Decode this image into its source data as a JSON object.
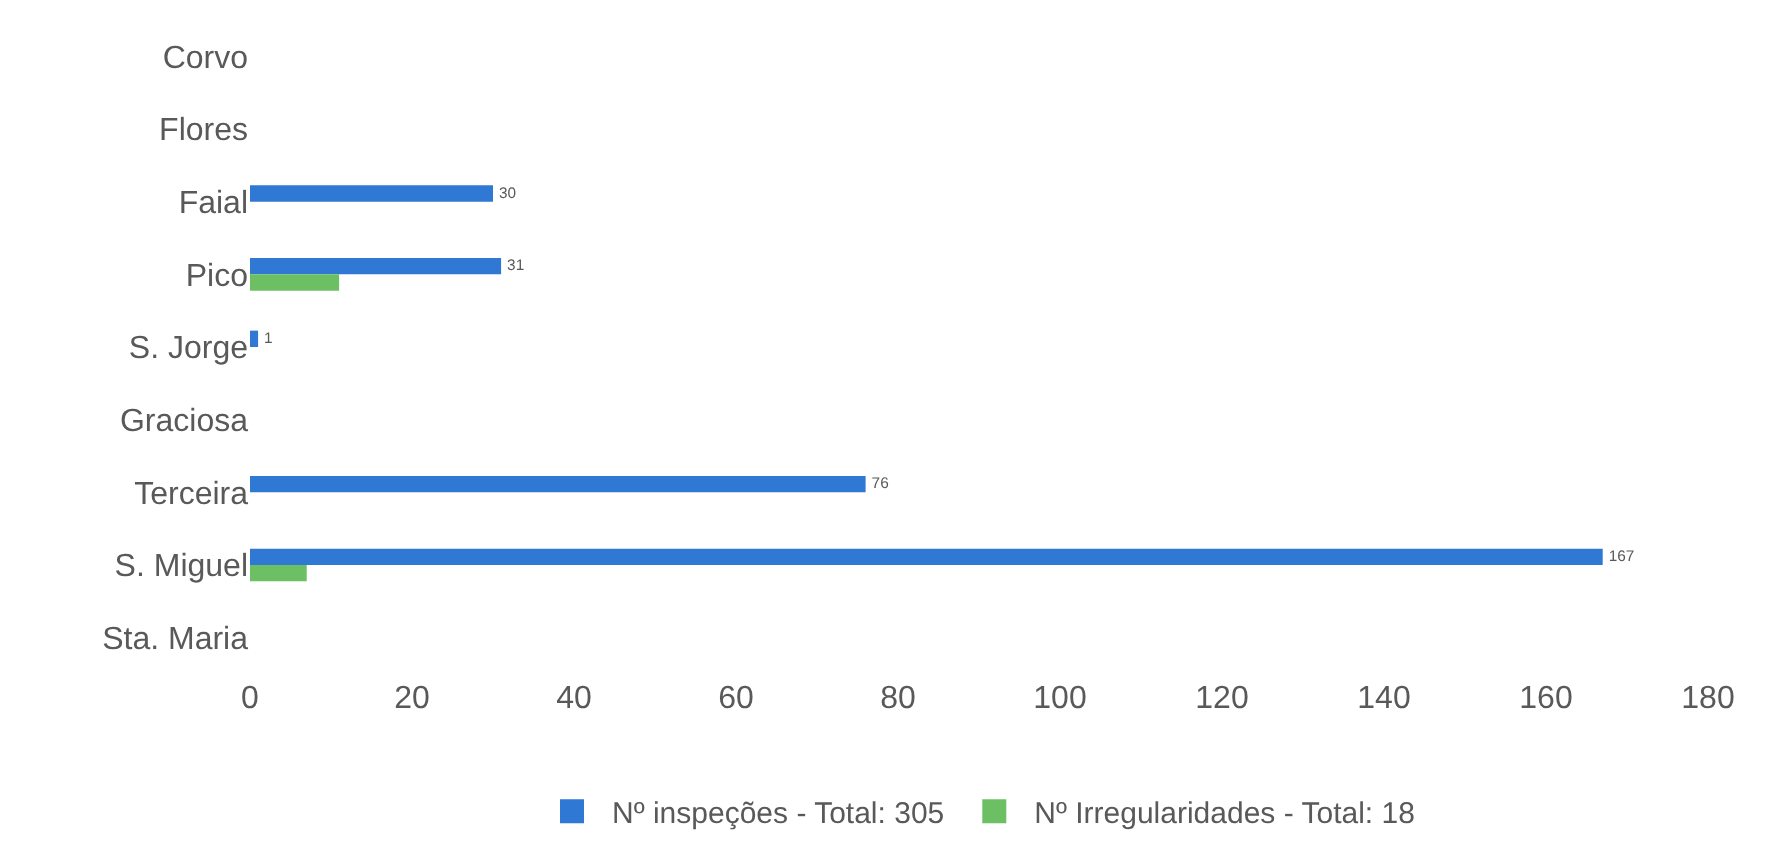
{
  "chart_data": {
    "type": "bar",
    "orientation": "horizontal",
    "categories": [
      "Corvo",
      "Flores",
      "Faial",
      "Pico",
      "S. Jorge",
      "Graciosa",
      "Terceira",
      "S. Miguel",
      "Sta. Maria"
    ],
    "series": [
      {
        "name": "Nº inspeções - Total: 305",
        "color": "#2f78d4",
        "values": [
          null,
          null,
          30,
          31,
          1,
          null,
          76,
          167,
          null
        ],
        "value_labels": [
          null,
          null,
          "30",
          "31",
          "1",
          null,
          "76",
          "167",
          null
        ]
      },
      {
        "name": "Nº Irregularidades - Total: 18",
        "color": "#6cbf63",
        "values": [
          null,
          null,
          null,
          11,
          null,
          null,
          null,
          7,
          null
        ]
      }
    ],
    "xlim": [
      0,
      180
    ],
    "xticks": [
      0,
      20,
      40,
      60,
      80,
      100,
      120,
      140,
      160,
      180
    ],
    "grid": false,
    "legend": "bottom"
  }
}
